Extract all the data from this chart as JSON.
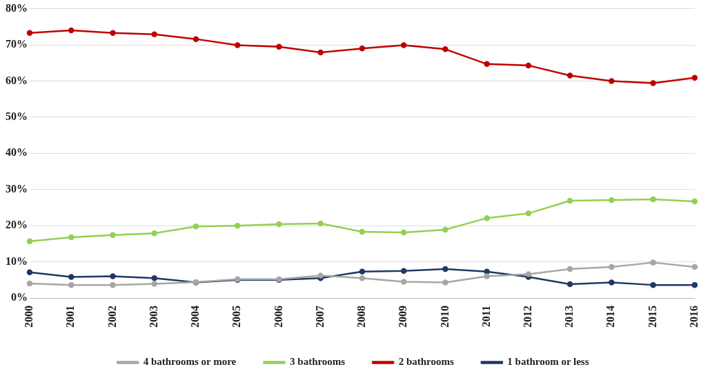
{
  "chart_data": {
    "type": "line",
    "categories": [
      "2000",
      "2001",
      "2002",
      "2003",
      "2004",
      "2005",
      "2006",
      "2007",
      "2008",
      "2009",
      "2010",
      "2011",
      "2012",
      "2013",
      "2014",
      "2015",
      "2016"
    ],
    "series": [
      {
        "name": "1 bathroom or less",
        "color": "#1f3864",
        "values": [
          7.1,
          5.8,
          6.0,
          5.5,
          4.3,
          5.0,
          5.0,
          5.5,
          7.3,
          7.5,
          8.0,
          7.3,
          5.8,
          3.8,
          4.3,
          3.6,
          3.6
        ]
      },
      {
        "name": "2 bathrooms",
        "color": "#c00000",
        "values": [
          73.3,
          74.0,
          73.3,
          72.9,
          71.6,
          69.9,
          69.5,
          67.9,
          69.0,
          69.9,
          68.8,
          64.7,
          64.3,
          61.5,
          60.0,
          59.4,
          60.9
        ]
      },
      {
        "name": "3 bathrooms",
        "color": "#92d050",
        "values": [
          15.7,
          16.8,
          17.4,
          17.9,
          19.8,
          20.0,
          20.4,
          20.6,
          18.3,
          18.1,
          18.9,
          22.1,
          23.4,
          26.9,
          27.1,
          27.3,
          26.7
        ]
      },
      {
        "name": "4 bathrooms or more",
        "color": "#a6a6a6",
        "values": [
          4.0,
          3.6,
          3.6,
          3.9,
          4.4,
          5.2,
          5.2,
          6.2,
          5.5,
          4.5,
          4.3,
          6.0,
          6.6,
          8.0,
          8.6,
          9.8,
          8.6
        ]
      }
    ],
    "ylim": [
      0,
      80
    ],
    "yticks": [
      {
        "value": 0,
        "label": "0%"
      },
      {
        "value": 10,
        "label": "10%"
      },
      {
        "value": 20,
        "label": "20%"
      },
      {
        "value": 30,
        "label": "30%"
      },
      {
        "value": 40,
        "label": "40%"
      },
      {
        "value": 50,
        "label": "50%"
      },
      {
        "value": 60,
        "label": "60%"
      },
      {
        "value": 70,
        "label": "70%"
      },
      {
        "value": 80,
        "label": "80%"
      }
    ],
    "grid": "y",
    "legend": "bottom",
    "marker": "circle",
    "line_style": "solid"
  }
}
